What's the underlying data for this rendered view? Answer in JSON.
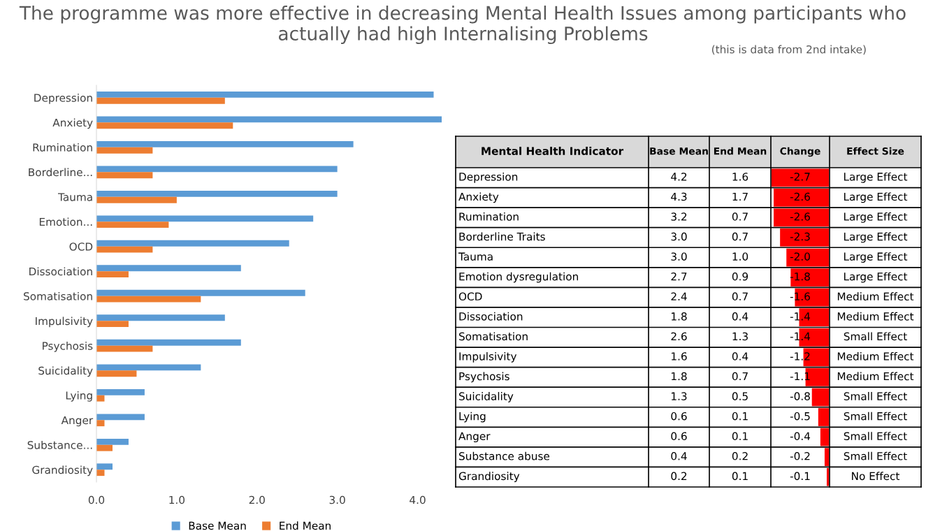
{
  "chart_data": [
    {
      "type": "bar",
      "orientation": "horizontal",
      "title": "The programme was more effective in decreasing Mental Health Issues among participants who actually had high Internalising Problems",
      "categories": [
        "Depression",
        "Anxiety",
        "Rumination",
        "Borderline...",
        "Tauma",
        "Emotion...",
        "OCD",
        "Dissociation",
        "Somatisation",
        "Impulsivity",
        "Psychosis",
        "Suicidality",
        "Lying",
        "Anger",
        "Substance...",
        "Grandiosity"
      ],
      "series": [
        {
          "name": "Base Mean",
          "color": "#5b9bd5",
          "values": [
            4.2,
            4.3,
            3.2,
            3.0,
            3.0,
            2.7,
            2.4,
            1.8,
            2.6,
            1.6,
            1.8,
            1.3,
            0.6,
            0.6,
            0.4,
            0.2
          ]
        },
        {
          "name": "End Mean",
          "color": "#ed7d31",
          "values": [
            1.6,
            1.7,
            0.7,
            0.7,
            1.0,
            0.9,
            0.7,
            0.4,
            1.3,
            0.4,
            0.7,
            0.5,
            0.1,
            0.1,
            0.2,
            0.1
          ]
        }
      ],
      "xlim": [
        0,
        4.3
      ],
      "xticks": [
        {
          "value": 0,
          "label": "0.0"
        },
        {
          "value": 1,
          "label": "1.0"
        },
        {
          "value": 2,
          "label": "2.0"
        },
        {
          "value": 3,
          "label": "3.0"
        },
        {
          "value": 4,
          "label": "4.0"
        }
      ],
      "legend": "bottom"
    },
    {
      "type": "bar",
      "orientation": "horizontal",
      "subtitle": "(this is data from 2nd intake)",
      "ylabel": "Mental Health Indicator",
      "categories": [
        "Depression",
        "Anxiety",
        "Rumination",
        "Borderline Traits",
        "Tauma",
        "Emotion dysregulation",
        "OCD",
        "Dissociation",
        "Somatisation",
        "Impulsivity",
        "Psychosis",
        "Suicidality",
        "Lying",
        "Anger",
        "Substance abuse",
        "Grandiosity"
      ],
      "series": [
        {
          "name": "Change",
          "color": "#ff0000",
          "values": [
            -2.7,
            -2.6,
            -2.6,
            -2.3,
            -2.0,
            -1.8,
            -1.6,
            -1.4,
            -1.4,
            -1.2,
            -1.1,
            -0.8,
            -0.5,
            -0.4,
            -0.2,
            -0.1
          ],
          "value_labels": [
            "-2.7",
            "-2.6",
            "-2.6",
            "-2.3",
            "-2.0",
            "-1.8",
            "-1.6",
            "-1.4",
            "-1.4",
            "-1.2",
            "-1.1",
            "-0.8",
            "-0.5",
            "-0.4",
            "-0.2",
            "-0.1"
          ]
        }
      ],
      "xlim": [
        -2.7,
        0
      ],
      "annotations": [
        "Base Mean",
        "End Mean",
        "Effect Size",
        "4.2",
        "1.6",
        "Large Effect",
        "4.3",
        "1.7",
        "Large Effect",
        "3.2",
        "0.7",
        "Large Effect",
        "3.0",
        "0.7",
        "Large Effect",
        "3.0",
        "1.0",
        "Large Effect",
        "2.7",
        "0.9",
        "Large Effect",
        "2.4",
        "0.7",
        "Medium Effect",
        "1.8",
        "0.4",
        "Medium Effect",
        "2.6",
        "1.3",
        "Small Effect",
        "1.6",
        "0.4",
        "Medium Effect",
        "1.8",
        "0.7",
        "Medium Effect",
        "1.3",
        "0.5",
        "Small Effect",
        "0.6",
        "0.1",
        "Small Effect",
        "0.6",
        "0.1",
        "Small Effect",
        "0.4",
        "0.2",
        "Small Effect",
        "0.2",
        "0.1",
        "No Effect"
      ]
    }
  ]
}
